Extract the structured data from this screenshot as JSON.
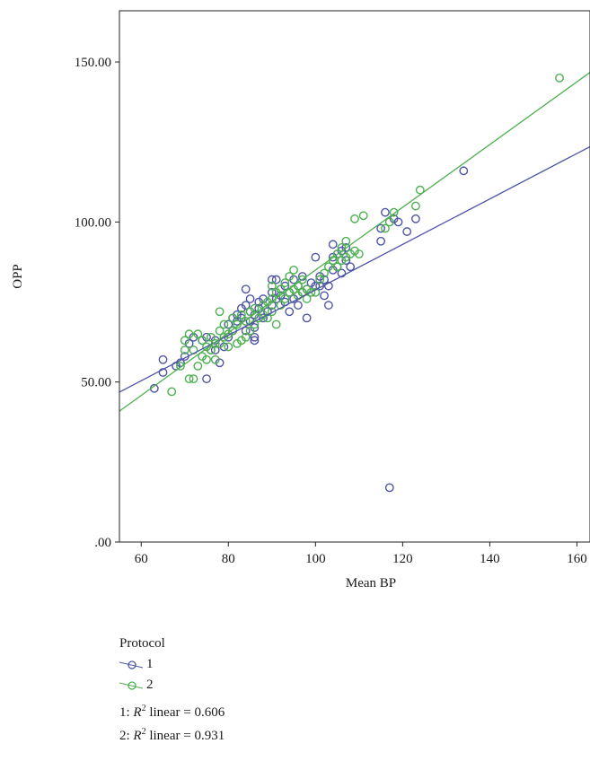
{
  "chart_data": {
    "type": "scatter",
    "title": "",
    "xlabel": "Mean BP",
    "ylabel": "OPP",
    "xlim": [
      55,
      163
    ],
    "ylim": [
      0,
      166
    ],
    "x_ticks": [
      60,
      80,
      100,
      120,
      140,
      160
    ],
    "x_tick_labels": [
      "60",
      "80",
      "100",
      "120",
      "140",
      "160"
    ],
    "y_ticks": [
      0,
      50,
      100,
      150
    ],
    "y_tick_labels": [
      ".00",
      "50.00",
      "100.00",
      "150.00"
    ],
    "grid": false,
    "legend": {
      "title": "Protocol",
      "placement": "bottom-left",
      "entries": [
        "1",
        "2"
      ]
    },
    "series": [
      {
        "name": "1",
        "color": "#4f55a6",
        "marker": "open-circle",
        "fit": {
          "intercept": 7.8,
          "slope": 0.71,
          "r2_label": "1: R² linear = 0.606",
          "r2_value": "0.606"
        },
        "points": [
          [
            63,
            48
          ],
          [
            65,
            53
          ],
          [
            65,
            57
          ],
          [
            68,
            55
          ],
          [
            69,
            56
          ],
          [
            70,
            58
          ],
          [
            71,
            62
          ],
          [
            72,
            64
          ],
          [
            74,
            63
          ],
          [
            75,
            64
          ],
          [
            75,
            51
          ],
          [
            76,
            60
          ],
          [
            77,
            60
          ],
          [
            77,
            63
          ],
          [
            78,
            56
          ],
          [
            79,
            61
          ],
          [
            80,
            64
          ],
          [
            80,
            68
          ],
          [
            81,
            66
          ],
          [
            81,
            70
          ],
          [
            82,
            69
          ],
          [
            82,
            71
          ],
          [
            83,
            70
          ],
          [
            83,
            73
          ],
          [
            84,
            74
          ],
          [
            84,
            79
          ],
          [
            84,
            66
          ],
          [
            85,
            76
          ],
          [
            85,
            72
          ],
          [
            85,
            69
          ],
          [
            86,
            63
          ],
          [
            86,
            64
          ],
          [
            86,
            67
          ],
          [
            86,
            71
          ],
          [
            87,
            75
          ],
          [
            87,
            73
          ],
          [
            88,
            70
          ],
          [
            88,
            76
          ],
          [
            89,
            72
          ],
          [
            90,
            74
          ],
          [
            90,
            78
          ],
          [
            90,
            82
          ],
          [
            91,
            82
          ],
          [
            91,
            76
          ],
          [
            92,
            79
          ],
          [
            92,
            77
          ],
          [
            93,
            75
          ],
          [
            93,
            80
          ],
          [
            94,
            78
          ],
          [
            94,
            72
          ],
          [
            95,
            76
          ],
          [
            95,
            82
          ],
          [
            96,
            80
          ],
          [
            96,
            74
          ],
          [
            97,
            78
          ],
          [
            97,
            83
          ],
          [
            98,
            70
          ],
          [
            98,
            79
          ],
          [
            99,
            81
          ],
          [
            100,
            80
          ],
          [
            100,
            89
          ],
          [
            101,
            80
          ],
          [
            101,
            83
          ],
          [
            102,
            82
          ],
          [
            102,
            77
          ],
          [
            103,
            74
          ],
          [
            103,
            80
          ],
          [
            104,
            85
          ],
          [
            104,
            89
          ],
          [
            104,
            93
          ],
          [
            105,
            86
          ],
          [
            105,
            90
          ],
          [
            106,
            84
          ],
          [
            106,
            91
          ],
          [
            107,
            92
          ],
          [
            107,
            88
          ],
          [
            108,
            86
          ],
          [
            115,
            98
          ],
          [
            115,
            94
          ],
          [
            116,
            103
          ],
          [
            117,
            17
          ],
          [
            118,
            101
          ],
          [
            119,
            100
          ],
          [
            121,
            97
          ],
          [
            123,
            101
          ],
          [
            134,
            116
          ]
        ]
      },
      {
        "name": "2",
        "color": "#4caf50",
        "marker": "open-circle",
        "fit": {
          "intercept": -13.0,
          "slope": 0.98,
          "r2_label": "2: R² linear = 0.931",
          "r2_value": "0.931"
        },
        "points": [
          [
            67,
            47
          ],
          [
            69,
            55
          ],
          [
            70,
            60
          ],
          [
            70,
            63
          ],
          [
            71,
            51
          ],
          [
            71,
            65
          ],
          [
            72,
            51
          ],
          [
            72,
            60
          ],
          [
            73,
            55
          ],
          [
            73,
            65
          ],
          [
            74,
            58
          ],
          [
            74,
            63
          ],
          [
            75,
            57
          ],
          [
            75,
            61
          ],
          [
            76,
            60
          ],
          [
            76,
            64
          ],
          [
            77,
            57
          ],
          [
            77,
            62
          ],
          [
            78,
            62
          ],
          [
            78,
            66
          ],
          [
            78,
            72
          ],
          [
            79,
            64
          ],
          [
            79,
            68
          ],
          [
            80,
            61
          ],
          [
            80,
            65
          ],
          [
            81,
            66
          ],
          [
            81,
            70
          ],
          [
            82,
            62
          ],
          [
            82,
            68
          ],
          [
            83,
            63
          ],
          [
            83,
            71
          ],
          [
            84,
            64
          ],
          [
            84,
            69
          ],
          [
            85,
            66
          ],
          [
            85,
            72
          ],
          [
            86,
            68
          ],
          [
            86,
            73
          ],
          [
            87,
            70
          ],
          [
            88,
            71
          ],
          [
            88,
            74
          ],
          [
            89,
            70
          ],
          [
            89,
            75
          ],
          [
            90,
            72
          ],
          [
            90,
            76
          ],
          [
            90,
            80
          ],
          [
            91,
            68
          ],
          [
            91,
            78
          ],
          [
            92,
            74
          ],
          [
            92,
            79
          ],
          [
            93,
            76
          ],
          [
            93,
            81
          ],
          [
            94,
            78
          ],
          [
            94,
            83
          ],
          [
            95,
            79
          ],
          [
            95,
            85
          ],
          [
            96,
            80
          ],
          [
            96,
            77
          ],
          [
            97,
            78
          ],
          [
            97,
            82
          ],
          [
            98,
            79
          ],
          [
            98,
            76
          ],
          [
            99,
            78
          ],
          [
            100,
            78
          ],
          [
            101,
            82
          ],
          [
            102,
            84
          ],
          [
            103,
            86
          ],
          [
            104,
            88
          ],
          [
            105,
            86
          ],
          [
            105,
            90
          ],
          [
            106,
            88
          ],
          [
            106,
            92
          ],
          [
            107,
            89
          ],
          [
            107,
            94
          ],
          [
            108,
            90
          ],
          [
            109,
            91
          ],
          [
            109,
            101
          ],
          [
            110,
            90
          ],
          [
            111,
            102
          ],
          [
            116,
            98
          ],
          [
            117,
            100
          ],
          [
            118,
            103
          ],
          [
            123,
            105
          ],
          [
            124,
            110
          ],
          [
            156,
            145
          ]
        ]
      }
    ]
  },
  "legend_panel": {
    "title": "Protocol",
    "items": [
      {
        "label": "1",
        "color": "#4f55a6"
      },
      {
        "label": "2",
        "color": "#4caf50"
      }
    ],
    "r2_lines": [
      {
        "prefix": "1: ",
        "symbol": "R",
        "sup": "2",
        "text": " linear = 0.606"
      },
      {
        "prefix": "2: ",
        "symbol": "R",
        "sup": "2",
        "text": " linear = 0.931"
      }
    ]
  }
}
